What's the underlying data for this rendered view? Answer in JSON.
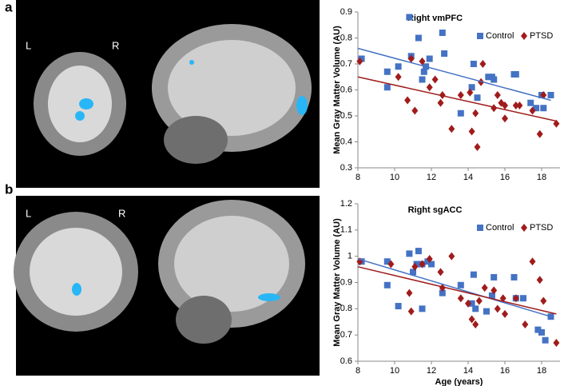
{
  "panels": [
    {
      "label": "a",
      "left_label": "L",
      "right_label": "R"
    },
    {
      "label": "b",
      "left_label": "L",
      "right_label": "R"
    }
  ],
  "chart_data": [
    {
      "type": "scatter",
      "title": "Right vmPFC",
      "y_label": "Mean Gray Matter Volume (AU)",
      "legend": "upper right",
      "xlim": [
        8,
        19
      ],
      "xticks": [
        8,
        10,
        12,
        14,
        16,
        18
      ],
      "ylim": [
        0.3,
        0.9
      ],
      "yticks": [
        0.3,
        0.4,
        0.5,
        0.6,
        0.7,
        0.8,
        0.9
      ],
      "series": [
        {
          "name": "Control",
          "color": "#4472c4",
          "marker": "square",
          "x": [
            8.2,
            9.6,
            9.6,
            10.2,
            10.8,
            10.9,
            11.3,
            11.5,
            11.6,
            11.7,
            11.9,
            12.6,
            12.7,
            13.6,
            14.2,
            14.3,
            14.5,
            15.1,
            15.3,
            15.4,
            16.5,
            16.6,
            17.4,
            17.7,
            18,
            18.1,
            18.5
          ],
          "values": [
            0.72,
            0.67,
            0.61,
            0.69,
            0.88,
            0.73,
            0.8,
            0.64,
            0.67,
            0.69,
            0.72,
            0.82,
            0.74,
            0.51,
            0.61,
            0.7,
            0.57,
            0.65,
            0.65,
            0.64,
            0.66,
            0.66,
            0.55,
            0.53,
            0.58,
            0.53,
            0.58
          ],
          "trend": {
            "x": [
              8,
              18.5
            ],
            "y": [
              0.76,
              0.56
            ]
          }
        },
        {
          "name": "PTSD",
          "color": "#a01c1c",
          "marker": "diamond",
          "x": [
            8.1,
            10.2,
            10.7,
            10.9,
            11.1,
            11.5,
            11.9,
            12.2,
            12.5,
            12.6,
            13.1,
            13.6,
            14.1,
            14.2,
            14.4,
            14.5,
            14.8,
            14.7,
            15.4,
            15.6,
            15.8,
            16,
            16,
            16.6,
            16.8,
            17.5,
            17.9,
            18.1,
            18.8
          ],
          "values": [
            0.71,
            0.65,
            0.56,
            0.72,
            0.52,
            0.71,
            0.61,
            0.64,
            0.55,
            0.58,
            0.45,
            0.58,
            0.59,
            0.44,
            0.51,
            0.38,
            0.7,
            0.63,
            0.53,
            0.58,
            0.55,
            0.49,
            0.54,
            0.54,
            0.54,
            0.52,
            0.43,
            0.58,
            0.47
          ],
          "trend": {
            "x": [
              8,
              18.8
            ],
            "y": [
              0.65,
              0.48
            ]
          }
        }
      ]
    },
    {
      "type": "scatter",
      "title": "Right sgACC",
      "y_label": "Mean Gray Matter Volume (AU)",
      "x_label": "Age (years)",
      "legend": "upper right",
      "xlim": [
        8,
        19
      ],
      "xticks": [
        8,
        10,
        12,
        14,
        16,
        18
      ],
      "ylim": [
        0.6,
        1.2
      ],
      "yticks": [
        0.6,
        0.7,
        0.8,
        0.9,
        1,
        1.1,
        1.2
      ],
      "series": [
        {
          "name": "Control",
          "color": "#4472c4",
          "marker": "square",
          "x": [
            8.2,
            9.6,
            9.6,
            10.2,
            10.8,
            11,
            11.2,
            11.3,
            11.5,
            11.5,
            11.8,
            12,
            12.6,
            13.6,
            14.2,
            14.3,
            14.4,
            15,
            15.3,
            15.4,
            16.5,
            16.6,
            17,
            17.8,
            18,
            18.2,
            18.5
          ],
          "values": [
            0.98,
            0.89,
            0.98,
            0.81,
            1.01,
            0.94,
            0.97,
            1.02,
            0.97,
            0.8,
            0.98,
            0.97,
            0.86,
            0.89,
            0.82,
            0.93,
            0.8,
            0.79,
            0.85,
            0.92,
            0.92,
            0.84,
            0.84,
            0.72,
            0.71,
            0.68,
            0.77
          ],
          "trend": {
            "x": [
              8,
              18.5
            ],
            "y": [
              0.99,
              0.77
            ]
          }
        },
        {
          "name": "PTSD",
          "color": "#a01c1c",
          "marker": "diamond",
          "x": [
            8.1,
            9.8,
            10.8,
            10.9,
            11.1,
            11.5,
            11.9,
            12.5,
            12.6,
            13.1,
            13.6,
            14,
            14.2,
            14.4,
            14.6,
            14.9,
            15.4,
            15.6,
            15.9,
            16,
            16.6,
            17.1,
            17.5,
            17.9,
            18.1,
            18.8
          ],
          "values": [
            0.98,
            0.97,
            0.86,
            0.79,
            0.96,
            0.97,
            0.99,
            0.94,
            0.88,
            1,
            0.84,
            0.82,
            0.76,
            0.74,
            0.83,
            0.88,
            0.87,
            0.8,
            0.84,
            0.78,
            0.84,
            0.74,
            0.98,
            0.91,
            0.83,
            0.67
          ],
          "trend": {
            "x": [
              8,
              18.8
            ],
            "y": [
              0.96,
              0.78
            ]
          }
        }
      ]
    }
  ]
}
